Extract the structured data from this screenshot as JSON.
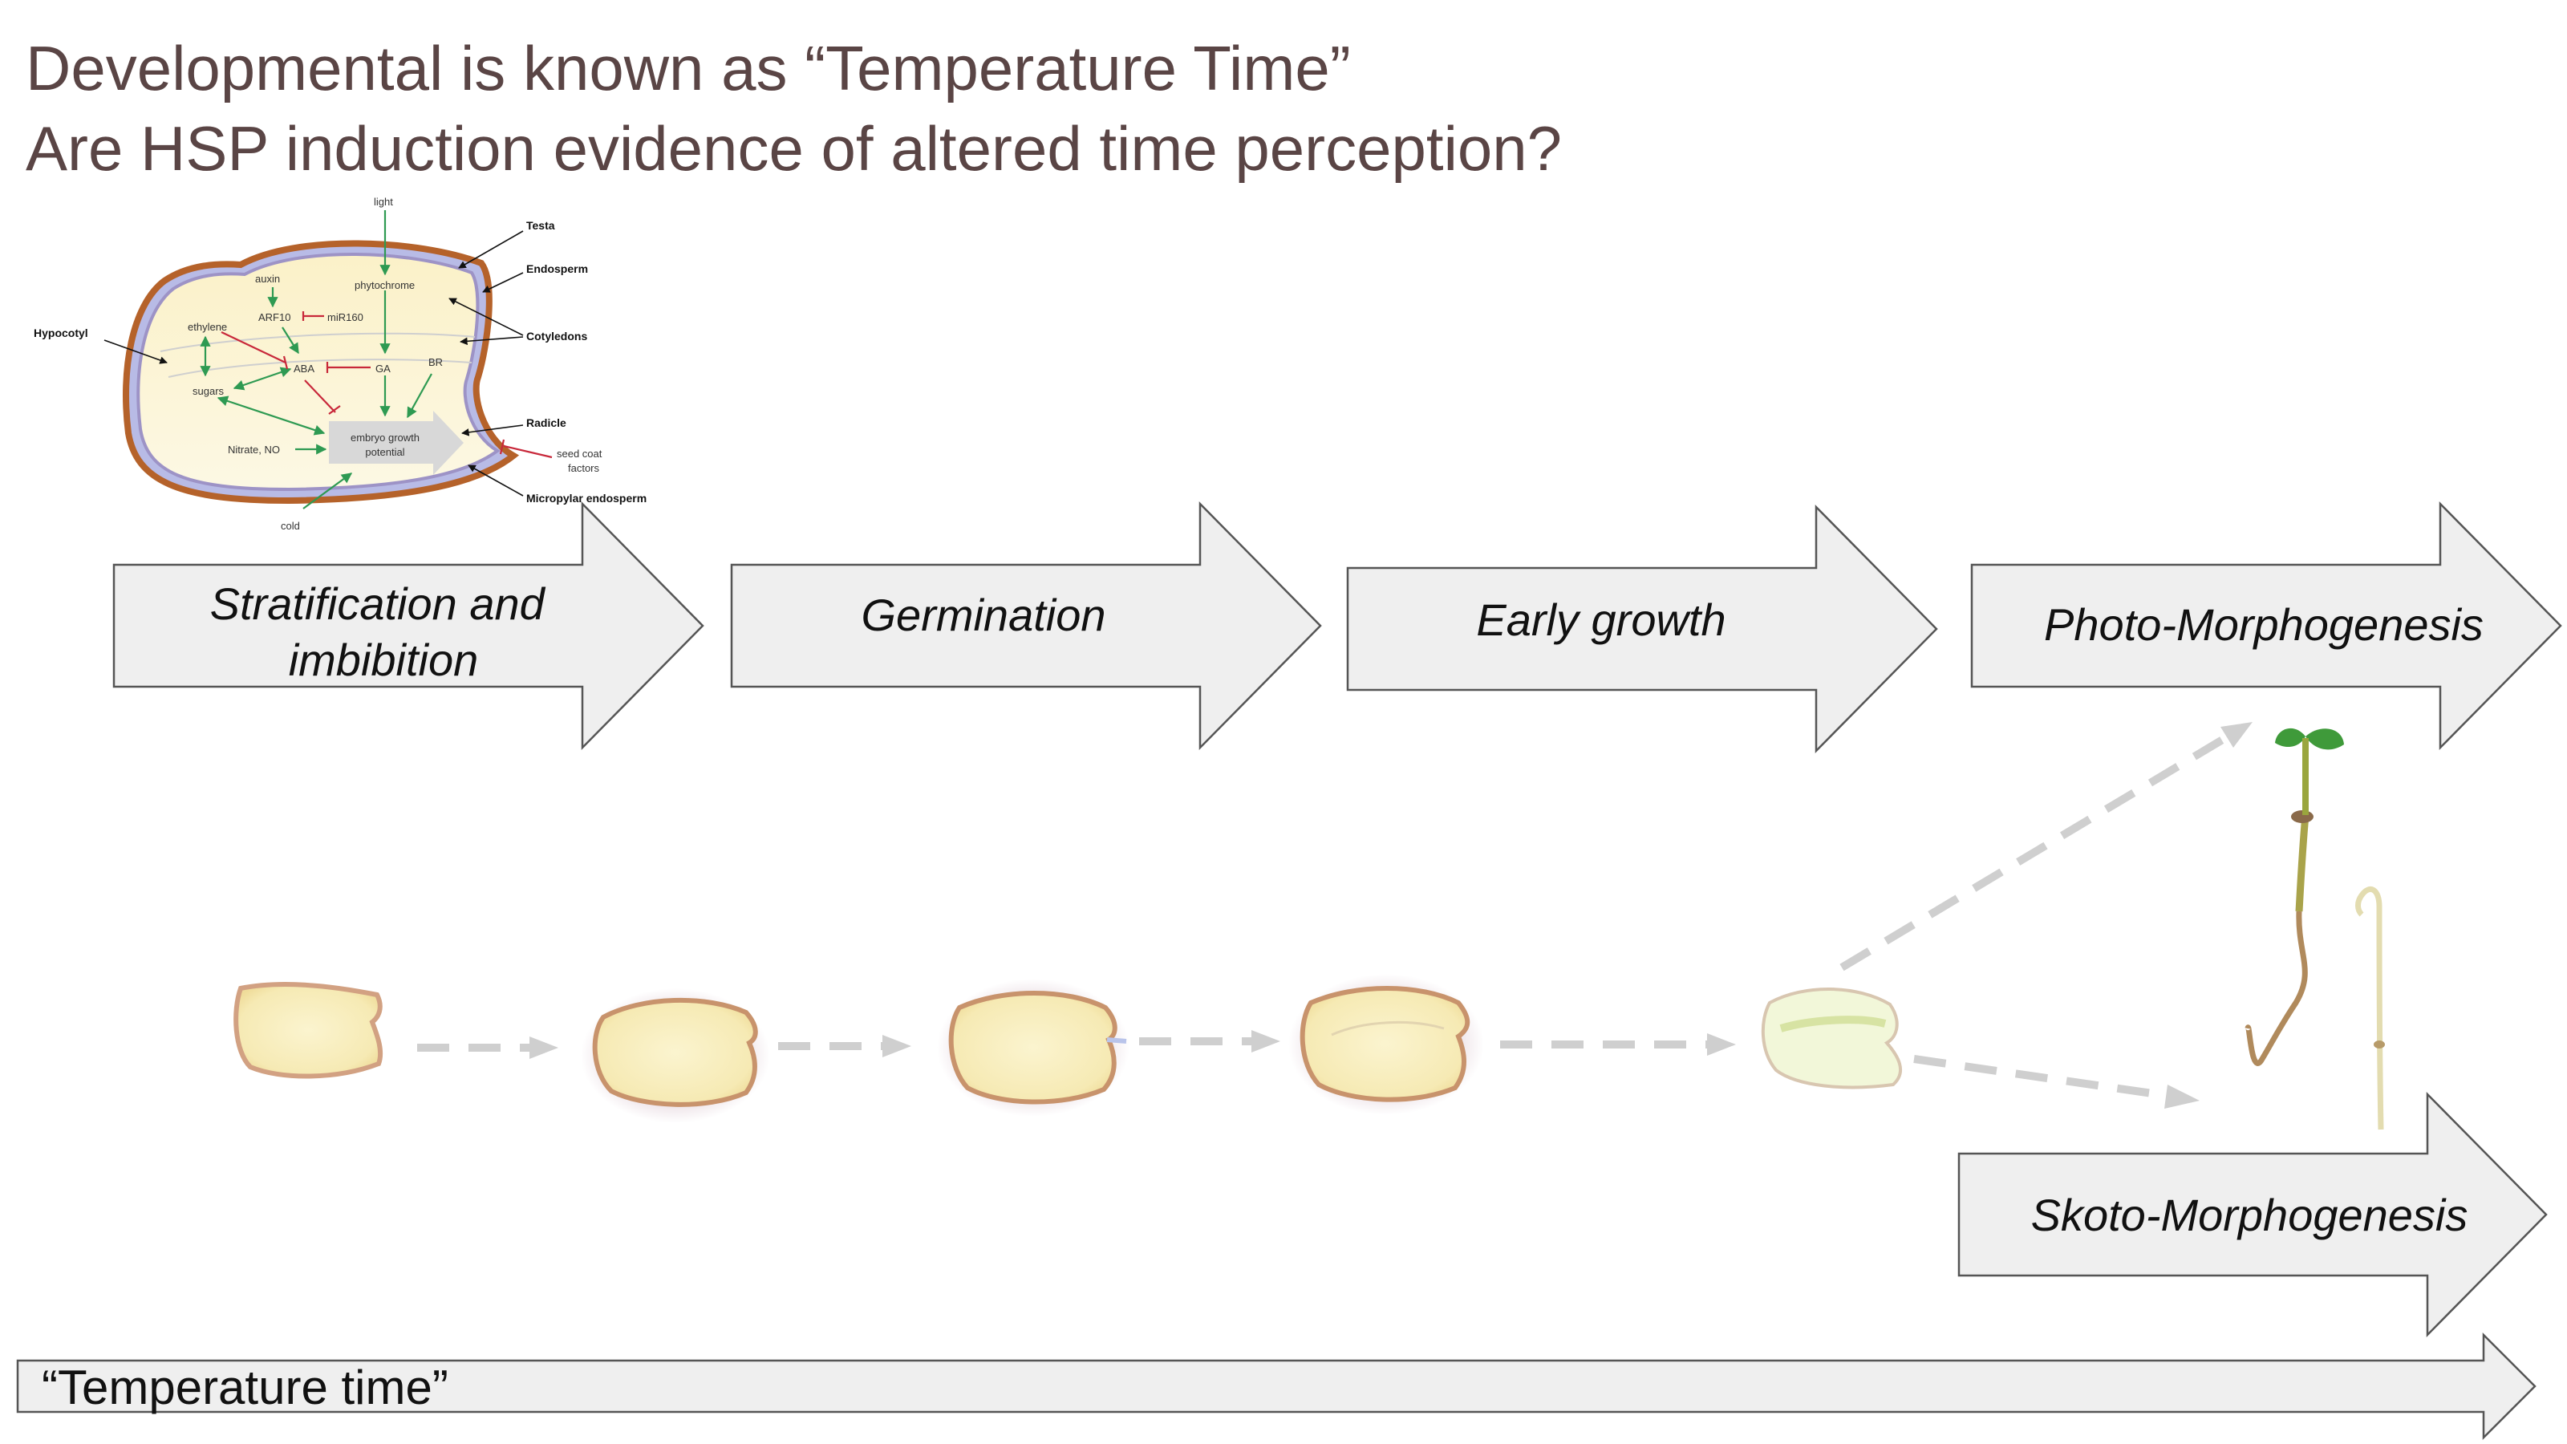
{
  "title": {
    "line1": "Developmental is known as “Temperature Time”",
    "line2": "Are HSP induction evidence of altered time perception?"
  },
  "stages": [
    {
      "label_lines": [
        "Stratification and",
        "imbibition"
      ]
    },
    {
      "label_lines": [
        "Germination"
      ]
    },
    {
      "label_lines": [
        "Early growth"
      ]
    },
    {
      "label_lines": [
        "Photo-Morphogenesis"
      ]
    }
  ],
  "skoto_label": "Skoto-Morphogenesis",
  "temperature_time_label": "“Temperature time”",
  "inset": {
    "signals": {
      "light": "light",
      "auxin": "auxin",
      "phytochrome": "phytochrome",
      "arf10": "ARF10",
      "mir160": "miR160",
      "ethylene": "ethylene",
      "aba": "ABA",
      "ga": "GA",
      "br": "BR",
      "sugars": "sugars",
      "nitrate": "Nitrate, NO",
      "embryo_line1": "embryo growth",
      "embryo_line2": "potential",
      "cold": "cold",
      "seedcoat_line1": "seed coat",
      "seedcoat_line2": "factors"
    },
    "parts": {
      "testa": "Testa",
      "endosperm": "Endosperm",
      "cotyledons": "Cotyledons",
      "hypocotyl": "Hypocotyl",
      "radicle": "Radicle",
      "micropylar": "Micropylar endosperm"
    }
  },
  "colors": {
    "title": "#5a4545",
    "arrow_fill": "#efefef",
    "arrow_stroke": "#555555",
    "dash_arrows": "#cfcfcf",
    "promote": "#2e9a52",
    "inhibit": "#c8283a",
    "testa": "#b5622a",
    "endosperm": "#9d93c6"
  }
}
